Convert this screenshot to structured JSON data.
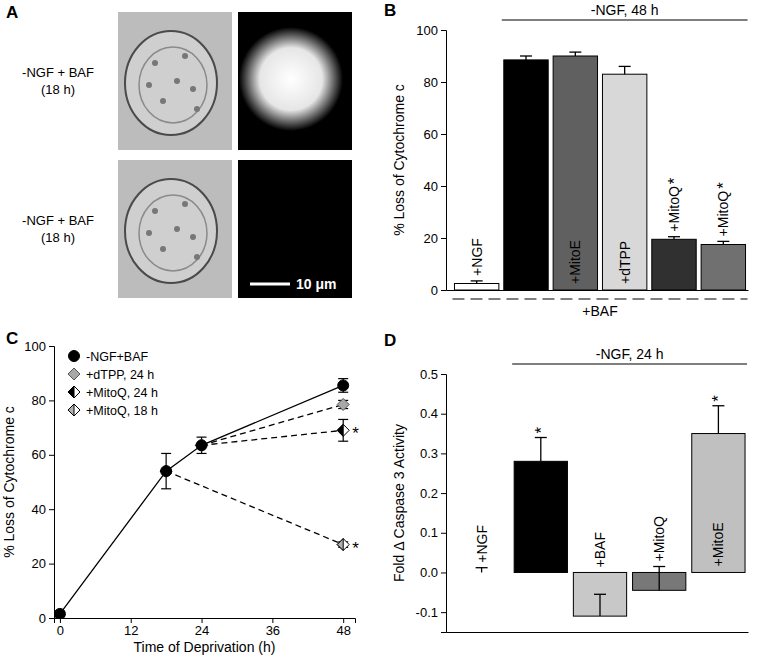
{
  "panel_a": {
    "label": "A",
    "rows": [
      {
        "condition": "-NGF + BAF",
        "time": "(18 h)"
      },
      {
        "condition": "-NGF + BAF",
        "time": "(18 h)"
      }
    ],
    "scale_bar": "10 μm"
  },
  "chart_data": [
    {
      "type": "bar",
      "title": "B",
      "categories": [
        "+NGF",
        null,
        "+MitoE",
        "+dTPP",
        "+MitoQ",
        "+MitoQ"
      ],
      "values": [
        2.5,
        88.5,
        90,
        83,
        19.5,
        17.5
      ],
      "errors": [
        1,
        1.5,
        1.5,
        3,
        1,
        1.2
      ],
      "colors": [
        "#ffffff",
        "#000000",
        "#606060",
        "#d8d8d8",
        "#303030",
        "#707070"
      ],
      "ylim": [
        0,
        100
      ],
      "yticks": [
        0,
        20,
        40,
        60,
        80,
        100
      ],
      "y_label": "% Loss of Cytochrome c",
      "tick_labels": "y",
      "annotations": [
        {
          "text": "-NGF, 48 h",
          "from": 1,
          "to": 5,
          "position": "top"
        },
        {
          "text": "+BAF",
          "from": 0,
          "to": 5,
          "position": "bottom"
        },
        {
          "text": "*",
          "index": 4
        },
        {
          "text": "*",
          "index": 5
        }
      ]
    },
    {
      "type": "line",
      "title": "C",
      "xlim": [
        -1,
        50
      ],
      "xticks": [
        0,
        12,
        24,
        36,
        48
      ],
      "ylim": [
        0,
        100
      ],
      "yticks": [
        0,
        20,
        40,
        60,
        80,
        100
      ],
      "x_label": "Time of Deprivation (h)",
      "y_label": "% Loss of Cytochrome c",
      "legend": "upper left",
      "series": [
        {
          "name": "-NGF+BAF",
          "x": [
            0,
            18,
            24,
            48
          ],
          "values": [
            1.5,
            54,
            63.5,
            85.5
          ],
          "errors": [
            1,
            6.5,
            3,
            2.5
          ],
          "color": "#000000",
          "marker": "circle",
          "line_style": "solid"
        },
        {
          "name": "+dTPP, 24 h",
          "x": [
            24,
            48
          ],
          "values": [
            63.5,
            78.5
          ],
          "errors": [
            0,
            1.5
          ],
          "color": "#a8a8a8",
          "marker": "diamond",
          "line_style": "dashed"
        },
        {
          "name": "+MitoQ, 24 h",
          "x": [
            24,
            48
          ],
          "values": [
            63.5,
            69
          ],
          "errors": [
            0,
            4
          ],
          "color": "#000000",
          "marker": "half-diamond",
          "line_style": "dashed"
        },
        {
          "name": "+MitoQ, 18 h",
          "x": [
            18,
            48
          ],
          "values": [
            54,
            27
          ],
          "errors": [
            0,
            1
          ],
          "color": "#b0b0b0",
          "marker": "half-diamond",
          "line_style": "dashed"
        }
      ],
      "annotations": [
        {
          "text": "*",
          "series": 2
        },
        {
          "text": "*",
          "series": 3
        }
      ]
    },
    {
      "type": "bar",
      "title": "D",
      "categories": [
        "+NGF",
        null,
        "+BAF",
        "+MitoQ",
        "+MitoE"
      ],
      "values": [
        0,
        0.28,
        -0.11,
        -0.045,
        0.35
      ],
      "errors": [
        0.012,
        0.06,
        0.055,
        0.06,
        0.07
      ],
      "colors": [
        "#ffffff",
        "#000000",
        "#c8c8c8",
        "#787878",
        "#c0c0c0"
      ],
      "ylim": [
        -0.15,
        0.5
      ],
      "yticks": [
        -0.1,
        {
          "value": 0,
          "label": "0.0"
        },
        0.1,
        0.2,
        0.3,
        0.4,
        0.5
      ],
      "y_label": "Fold Δ Caspase 3 Activity",
      "tick_labels": "y",
      "annotations": [
        {
          "text": "-NGF, 24 h",
          "from": 1,
          "to": 4,
          "position": "top"
        },
        {
          "text": "*",
          "index": 1
        },
        {
          "text": "*",
          "index": 4
        }
      ]
    }
  ]
}
